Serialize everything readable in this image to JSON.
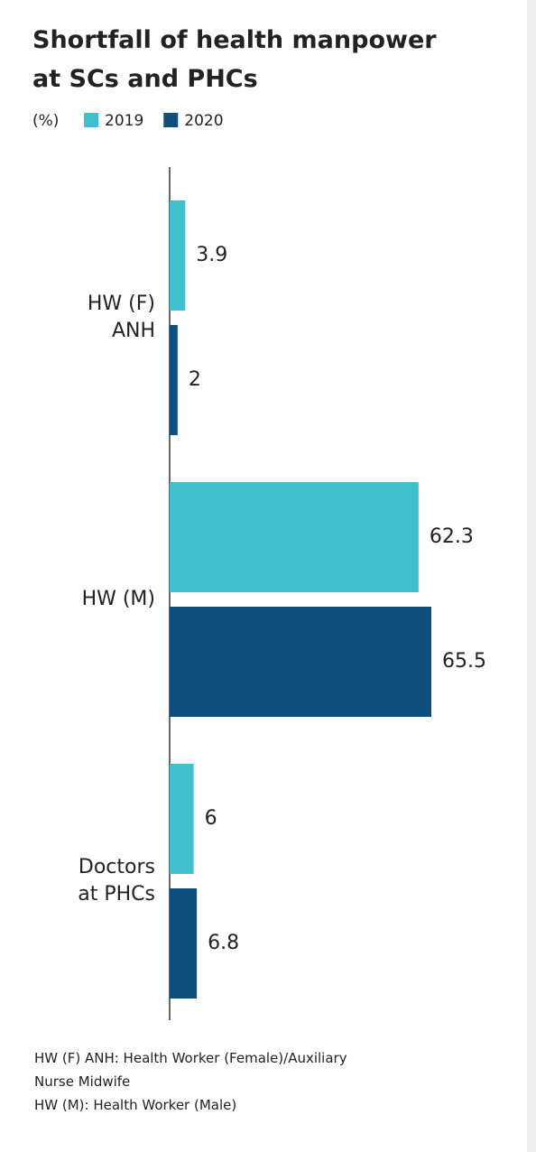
{
  "chart_data": {
    "type": "bar",
    "orientation": "horizontal",
    "title": "Shortfall of health manpower at SCs and PHCs",
    "unit_label": "(%)",
    "categories": [
      "HW (F)\nANH",
      "HW (M)",
      "Doctors\nat PHCs"
    ],
    "series": [
      {
        "name": "2019",
        "color": "#40bfcf",
        "values": [
          3.9,
          62.3,
          6
        ]
      },
      {
        "name": "2020",
        "color": "#0e4f7d",
        "values": [
          2,
          65.5,
          6.8
        ]
      }
    ],
    "notes": [
      "HW (F) ANH: Health Worker (Female)/Auxiliary\nNurse Midwife",
      "HW (M): Health Worker (Male)"
    ]
  }
}
